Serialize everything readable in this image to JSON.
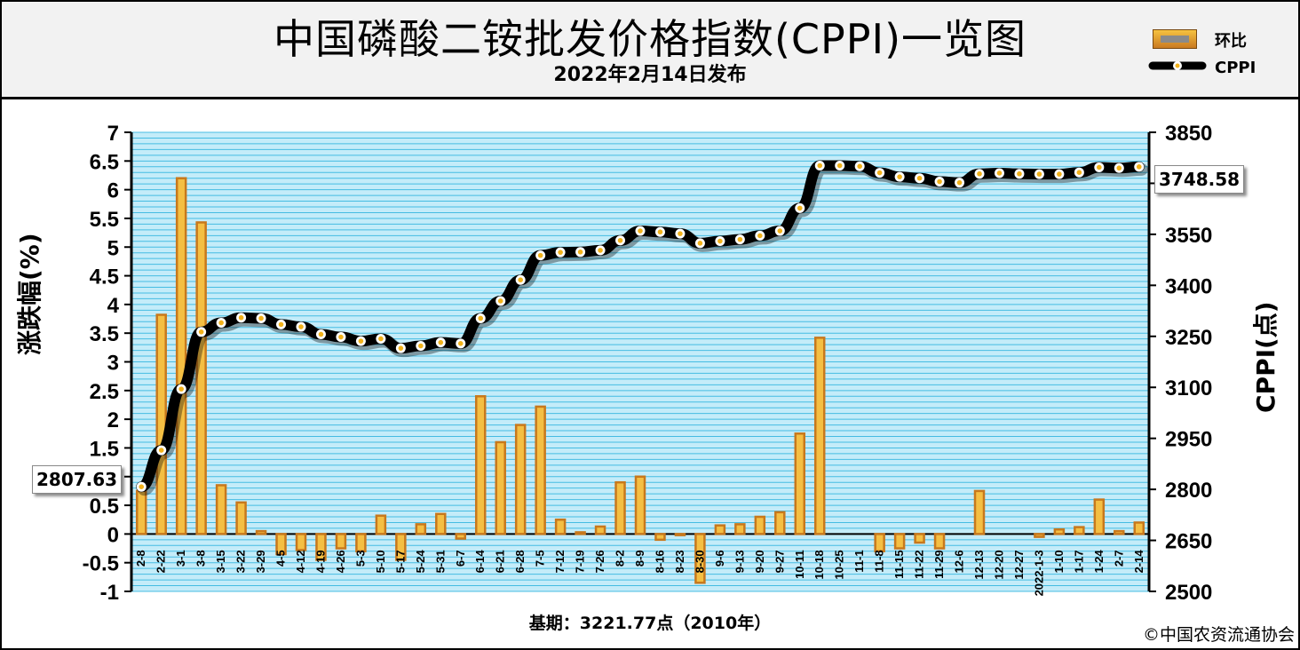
{
  "header": {
    "title": "中国磷酸二铵批发价格指数(CPPI)一览图",
    "subtitle": "2022年2月14日发布"
  },
  "legend": {
    "bar_label": "环比",
    "line_label": "CPPI"
  },
  "footer": {
    "base_note": "基期：3221.77点（2010年）",
    "credit": "©中国农资流通协会"
  },
  "colors": {
    "plot_bg": "#c4ecf9",
    "grid": "#2fb4df",
    "bar_edge": "#c8781c",
    "bar_fill": "#f4bf43",
    "line": "#000000",
    "marker": "#f2b21b"
  },
  "chart_data": {
    "type": "bar+line",
    "title": "中国磷酸二铵批发价格指数(CPPI)一览图",
    "y_left_label": "涨跌幅(%)",
    "y_right_label": "CPPI(点)",
    "y_left_range": [
      -1,
      7
    ],
    "y_left_ticks": [
      "7",
      "6.5",
      "6",
      "5.5",
      "5",
      "4.5",
      "4",
      "3.5",
      "3",
      "2.5",
      "2",
      "1.5",
      "1",
      "0.5",
      "0",
      "-0.5",
      "-1"
    ],
    "y_right_range": [
      2500,
      3850
    ],
    "y_right_ticks": [
      "3850",
      "3700",
      "3550",
      "3400",
      "3250",
      "3100",
      "2950",
      "2800",
      "2650",
      "2500"
    ],
    "categories": [
      "2-8",
      "2-22",
      "3-1",
      "3-8",
      "3-15",
      "3-22",
      "3-29",
      "4-5",
      "4-12",
      "4-19",
      "4-26",
      "5-3",
      "5-10",
      "5-17",
      "5-24",
      "5-31",
      "6-7",
      "6-14",
      "6-21",
      "6-28",
      "7-5",
      "7-12",
      "7-19",
      "7-26",
      "8-2",
      "8-9",
      "8-16",
      "8-23",
      "8-30",
      "9-6",
      "9-13",
      "9-20",
      "9-27",
      "10-11",
      "10-18",
      "10-25",
      "11-1",
      "11-8",
      "11-15",
      "11-22",
      "11-29",
      "12-6",
      "12-13",
      "12-20",
      "12-27",
      "2022-1-3",
      "1-10",
      "1-17",
      "1-24",
      "2-7",
      "2-14"
    ],
    "series": [
      {
        "name": "环比",
        "type": "bar",
        "values": [
          0.75,
          3.82,
          6.2,
          5.43,
          0.85,
          0.55,
          0.05,
          -0.35,
          -0.28,
          -0.45,
          -0.25,
          -0.3,
          0.32,
          -0.45,
          0.17,
          0.35,
          -0.08,
          2.4,
          1.6,
          1.9,
          2.22,
          0.25,
          0.03,
          0.13,
          0.9,
          1.0,
          -0.1,
          -0.02,
          -0.85,
          0.15,
          0.17,
          0.3,
          0.38,
          1.75,
          3.42,
          0.0,
          0.0,
          -0.3,
          -0.25,
          -0.15,
          -0.25,
          0.0,
          0.75,
          0.0,
          0.0,
          -0.05,
          0.08,
          0.12,
          0.6,
          0.05,
          0.2
        ]
      },
      {
        "name": "CPPI",
        "type": "line",
        "values": [
          2807.63,
          2915,
          3095,
          3263,
          3290,
          3305,
          3303,
          3285,
          3278,
          3256,
          3248,
          3236,
          3243,
          3215,
          3222,
          3232,
          3229,
          3303,
          3354,
          3416,
          3488,
          3497,
          3498,
          3503,
          3532,
          3560,
          3557,
          3552,
          3524,
          3530,
          3535,
          3546,
          3560,
          3627,
          3752,
          3752,
          3750,
          3731,
          3719,
          3715,
          3705,
          3702,
          3728,
          3730,
          3728,
          3727,
          3727,
          3732,
          3747,
          3745,
          3748.58
        ]
      }
    ],
    "value_labels": {
      "first": "2807.63",
      "last": "3748.58"
    },
    "grid": true,
    "legend_position": "top-right"
  }
}
